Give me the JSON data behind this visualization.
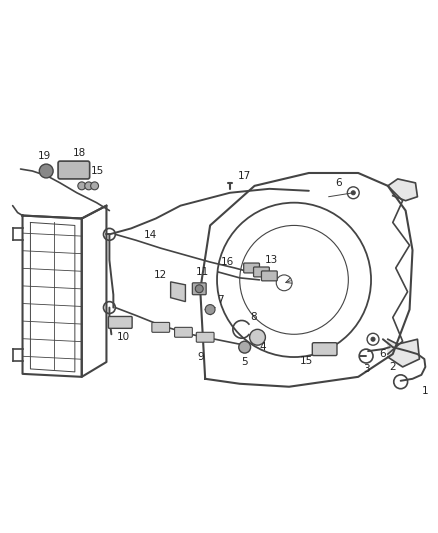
{
  "bg_color": "#ffffff",
  "line_color": "#444444",
  "label_color": "#222222",
  "figsize": [
    4.38,
    5.33
  ],
  "dpi": 100,
  "font_size": 7.5,
  "xlim": [
    0,
    438
  ],
  "ylim": [
    0,
    533
  ]
}
